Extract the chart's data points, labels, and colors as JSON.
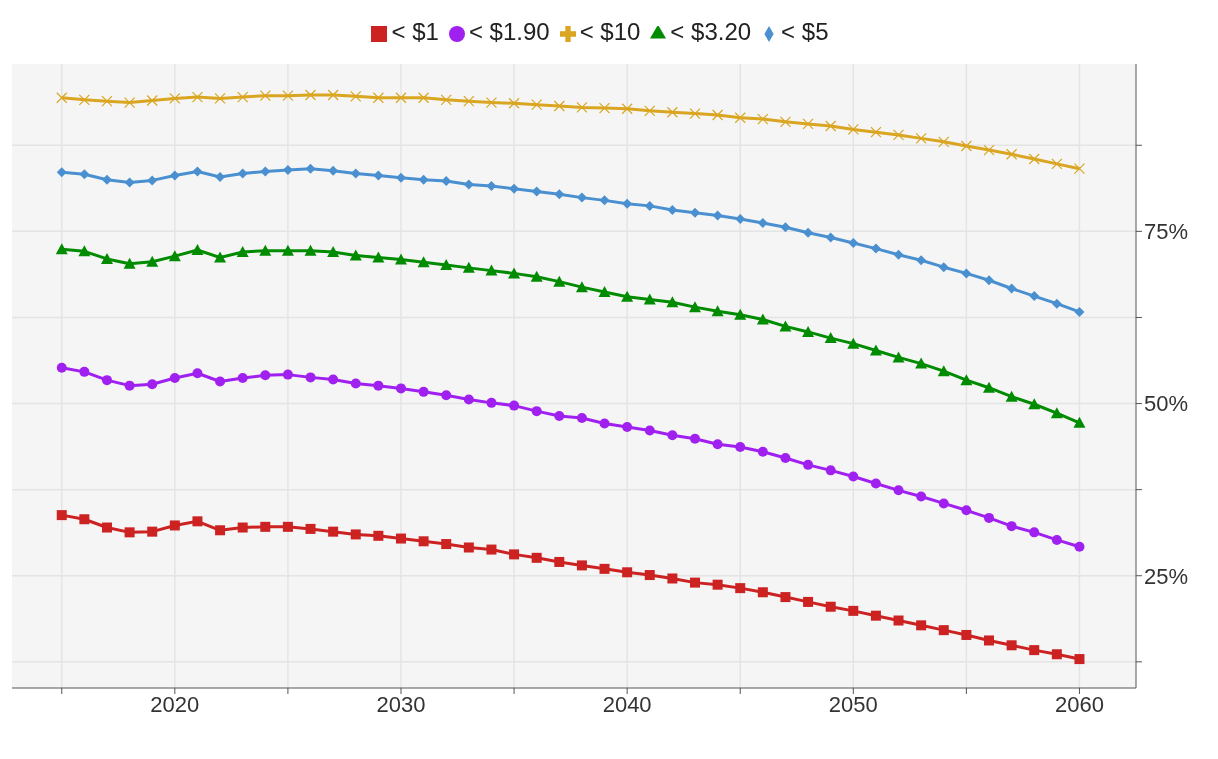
{
  "chart_data": {
    "type": "line",
    "x": [
      2015,
      2016,
      2017,
      2018,
      2019,
      2020,
      2021,
      2022,
      2023,
      2024,
      2025,
      2026,
      2027,
      2028,
      2029,
      2030,
      2031,
      2032,
      2033,
      2034,
      2035,
      2036,
      2037,
      2038,
      2039,
      2040,
      2041,
      2042,
      2043,
      2044,
      2045,
      2046,
      2047,
      2048,
      2049,
      2050,
      2051,
      2052,
      2053,
      2054,
      2055,
      2056,
      2057,
      2058,
      2059,
      2060
    ],
    "series": [
      {
        "name": "< $1",
        "color": "#cc2222",
        "marker": "square",
        "values": [
          33.8,
          33.2,
          32.0,
          31.3,
          31.4,
          32.3,
          32.9,
          31.6,
          32.0,
          32.1,
          32.1,
          31.8,
          31.4,
          31.0,
          30.8,
          30.4,
          30.0,
          29.6,
          29.1,
          28.8,
          28.1,
          27.6,
          27.0,
          26.5,
          26.0,
          25.5,
          25.1,
          24.6,
          24.0,
          23.7,
          23.2,
          22.6,
          21.9,
          21.2,
          20.5,
          19.9,
          19.2,
          18.5,
          17.8,
          17.1,
          16.4,
          15.6,
          14.9,
          14.2,
          13.6,
          12.9
        ]
      },
      {
        "name": "< $1.90",
        "color": "#a020f0",
        "marker": "circle",
        "values": [
          55.2,
          54.6,
          53.4,
          52.6,
          52.8,
          53.7,
          54.4,
          53.2,
          53.7,
          54.1,
          54.2,
          53.8,
          53.5,
          52.9,
          52.6,
          52.2,
          51.7,
          51.2,
          50.6,
          50.1,
          49.7,
          48.9,
          48.2,
          47.9,
          47.1,
          46.6,
          46.1,
          45.4,
          44.9,
          44.1,
          43.7,
          43.0,
          42.1,
          41.1,
          40.3,
          39.4,
          38.4,
          37.4,
          36.5,
          35.5,
          34.5,
          33.4,
          32.2,
          31.3,
          30.2,
          29.2
        ]
      },
      {
        "name": "< $3.20",
        "color": "#008b00",
        "marker": "triangle",
        "values": [
          72.4,
          72.1,
          71.0,
          70.3,
          70.6,
          71.4,
          72.3,
          71.2,
          72.0,
          72.2,
          72.2,
          72.2,
          72.0,
          71.5,
          71.2,
          70.9,
          70.5,
          70.1,
          69.7,
          69.3,
          68.9,
          68.4,
          67.7,
          66.9,
          66.2,
          65.5,
          65.1,
          64.7,
          64.0,
          63.4,
          62.9,
          62.2,
          61.2,
          60.4,
          59.5,
          58.7,
          57.7,
          56.7,
          55.8,
          54.7,
          53.4,
          52.3,
          51.0,
          49.9,
          48.6,
          47.2
        ]
      },
      {
        "name": "< $5",
        "color": "#4a90d0",
        "marker": "diamond",
        "values": [
          83.6,
          83.3,
          82.5,
          82.1,
          82.4,
          83.1,
          83.7,
          82.9,
          83.4,
          83.7,
          83.9,
          84.1,
          83.8,
          83.4,
          83.1,
          82.8,
          82.5,
          82.3,
          81.8,
          81.6,
          81.2,
          80.8,
          80.4,
          79.9,
          79.5,
          79.0,
          78.7,
          78.1,
          77.7,
          77.3,
          76.8,
          76.2,
          75.6,
          74.8,
          74.1,
          73.3,
          72.5,
          71.6,
          70.8,
          69.8,
          68.9,
          67.9,
          66.7,
          65.6,
          64.5,
          63.3
        ]
      },
      {
        "name": "< $10",
        "color": "#daa520",
        "marker": "cross",
        "values": [
          94.4,
          94.1,
          93.9,
          93.7,
          94.0,
          94.3,
          94.5,
          94.3,
          94.5,
          94.7,
          94.7,
          94.8,
          94.8,
          94.6,
          94.4,
          94.4,
          94.4,
          94.1,
          93.9,
          93.7,
          93.6,
          93.4,
          93.2,
          93.0,
          92.9,
          92.8,
          92.5,
          92.3,
          92.1,
          91.9,
          91.5,
          91.3,
          90.9,
          90.6,
          90.3,
          89.8,
          89.4,
          89.0,
          88.5,
          88.0,
          87.4,
          86.8,
          86.2,
          85.5,
          84.8,
          84.1
        ]
      }
    ],
    "xlim": [
      2012.8,
      2062.5
    ],
    "xticks": [
      {
        "value": 2015,
        "label": null
      },
      2020,
      {
        "value": 2025,
        "label": null
      },
      2030,
      {
        "value": 2035,
        "label": null
      },
      2040,
      {
        "value": 2045,
        "label": null
      },
      2050,
      {
        "value": 2055,
        "label": null
      },
      2060
    ],
    "ylim": [
      8.7,
      99.3
    ],
    "yticks": [
      {
        "value": 12.5,
        "label": null
      },
      {
        "value": 25,
        "label": "25%"
      },
      {
        "value": 37.5,
        "label": null
      },
      {
        "value": 50,
        "label": "50%"
      },
      {
        "value": 62.5,
        "label": null
      },
      {
        "value": 75,
        "label": "75%"
      },
      {
        "value": 87.5,
        "label": null
      }
    ],
    "grid": true,
    "legend": "top",
    "line_style": "solid"
  }
}
